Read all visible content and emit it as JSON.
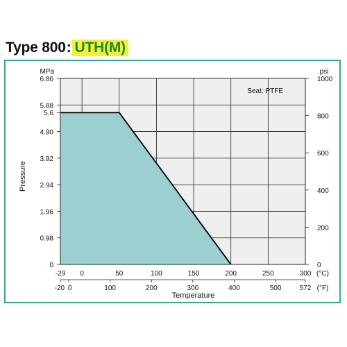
{
  "header": {
    "type_label": "Type 800",
    "separator": ":",
    "model": "UTH(M)"
  },
  "colors": {
    "frame": "#3aa49a",
    "fill": "#9ccfcf",
    "plot_bg": "#efefef",
    "highlight": "#f3ef3a",
    "model_text": "#1d8a2e"
  },
  "chart_data": {
    "type": "area",
    "annotation": "Seat: PTFE",
    "xlabel": "Temperature",
    "ylabel": "Pressure",
    "left_unit": "MPa",
    "right_unit": "psi",
    "celsius_unit": "(°C)",
    "fahrenheit_unit": "(°F)",
    "xlim": [
      -29,
      300
    ],
    "ylim": [
      0,
      6.86
    ],
    "x_ticks": [
      "-29",
      "0",
      "50",
      "100",
      "150",
      "200",
      "250",
      "300"
    ],
    "x_tick_values": [
      -29,
      0,
      50,
      100,
      150,
      200,
      250,
      300
    ],
    "f_ticks": [
      "-20",
      "0",
      "100",
      "200",
      "300",
      "400",
      "500",
      "572"
    ],
    "f_tick_values": [
      -20,
      0,
      100,
      200,
      300,
      400,
      500,
      572
    ],
    "y_ticks": [
      "0",
      "0.98",
      "1.96",
      "2.94",
      "3.92",
      "4.90",
      "5.6",
      "5.88",
      "6.86"
    ],
    "y_tick_values": [
      0,
      0.98,
      1.96,
      2.94,
      3.92,
      4.9,
      5.6,
      5.88,
      6.86
    ],
    "psi_ticks": [
      "0",
      "200",
      "400",
      "600",
      "800",
      "1000"
    ],
    "psi_tick_values": [
      0,
      200,
      400,
      600,
      800,
      1000
    ],
    "grid": true,
    "series": [
      {
        "x": [
          -29,
          50,
          200
        ],
        "y": [
          5.6,
          5.6,
          0
        ]
      }
    ]
  }
}
